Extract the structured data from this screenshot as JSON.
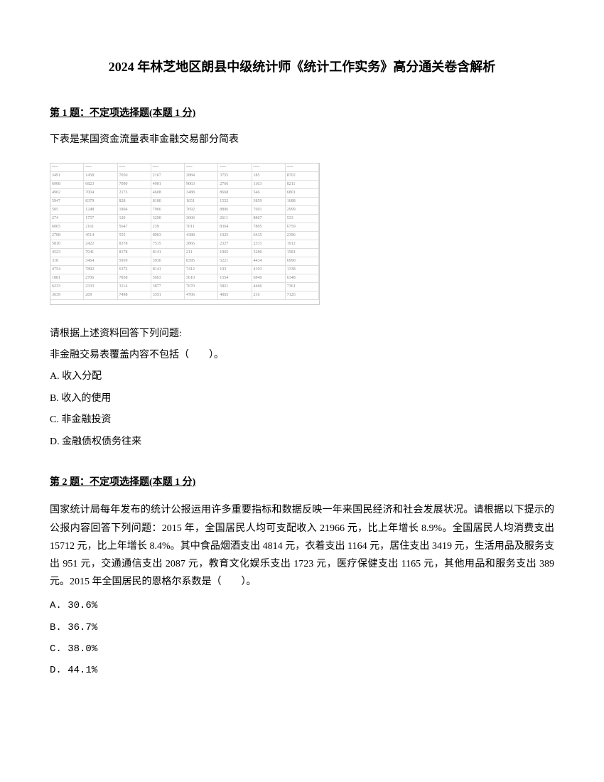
{
  "title": "2024 年林芝地区朗县中级统计师《统计工作实务》高分通关卷含解析",
  "q1": {
    "header": "第 1 题：不定项选择题(本题 1 分)",
    "intro": "下表是某国资金流量表非金融交易部分简表",
    "prompt": "请根据上述资料回答下列问题:",
    "question": "非金融交易表覆盖内容不包括（　　）。",
    "options": {
      "a": "A. 收入分配",
      "b": "B. 收入的使用",
      "c": "C. 非金融投资",
      "d": "D. 金融债权债务往来"
    }
  },
  "q2": {
    "header": "第 2 题：不定项选择题(本题 1 分)",
    "body": "国家统计局每年发布的统计公报运用许多重要指标和数据反映一年来国民经济和社会发展状况。请根据以下提示的公报内容回答下列问题：2015 年，全国居民人均可支配收入 21966 元，比上年增长 8.9%。全国居民人均消费支出 15712 元，比上年增长 8.4%。其中食品烟酒支出 4814 元，衣着支出 1164 元，居住支出 3419 元，生活用品及服务支出 951 元，交通通信支出 2087 元，教育文化娱乐支出 1723 元，医疗保健支出 1165 元，其他用品和服务支出 389 元。2015 年全国居民的恩格尔系数是（　　）。",
    "options": {
      "a": "A. 30.6%",
      "b": "B. 36.7%",
      "c": "C. 38.0%",
      "d": "D. 44.1%"
    }
  },
  "table_stub": {
    "rows": 16,
    "cols": 8
  }
}
